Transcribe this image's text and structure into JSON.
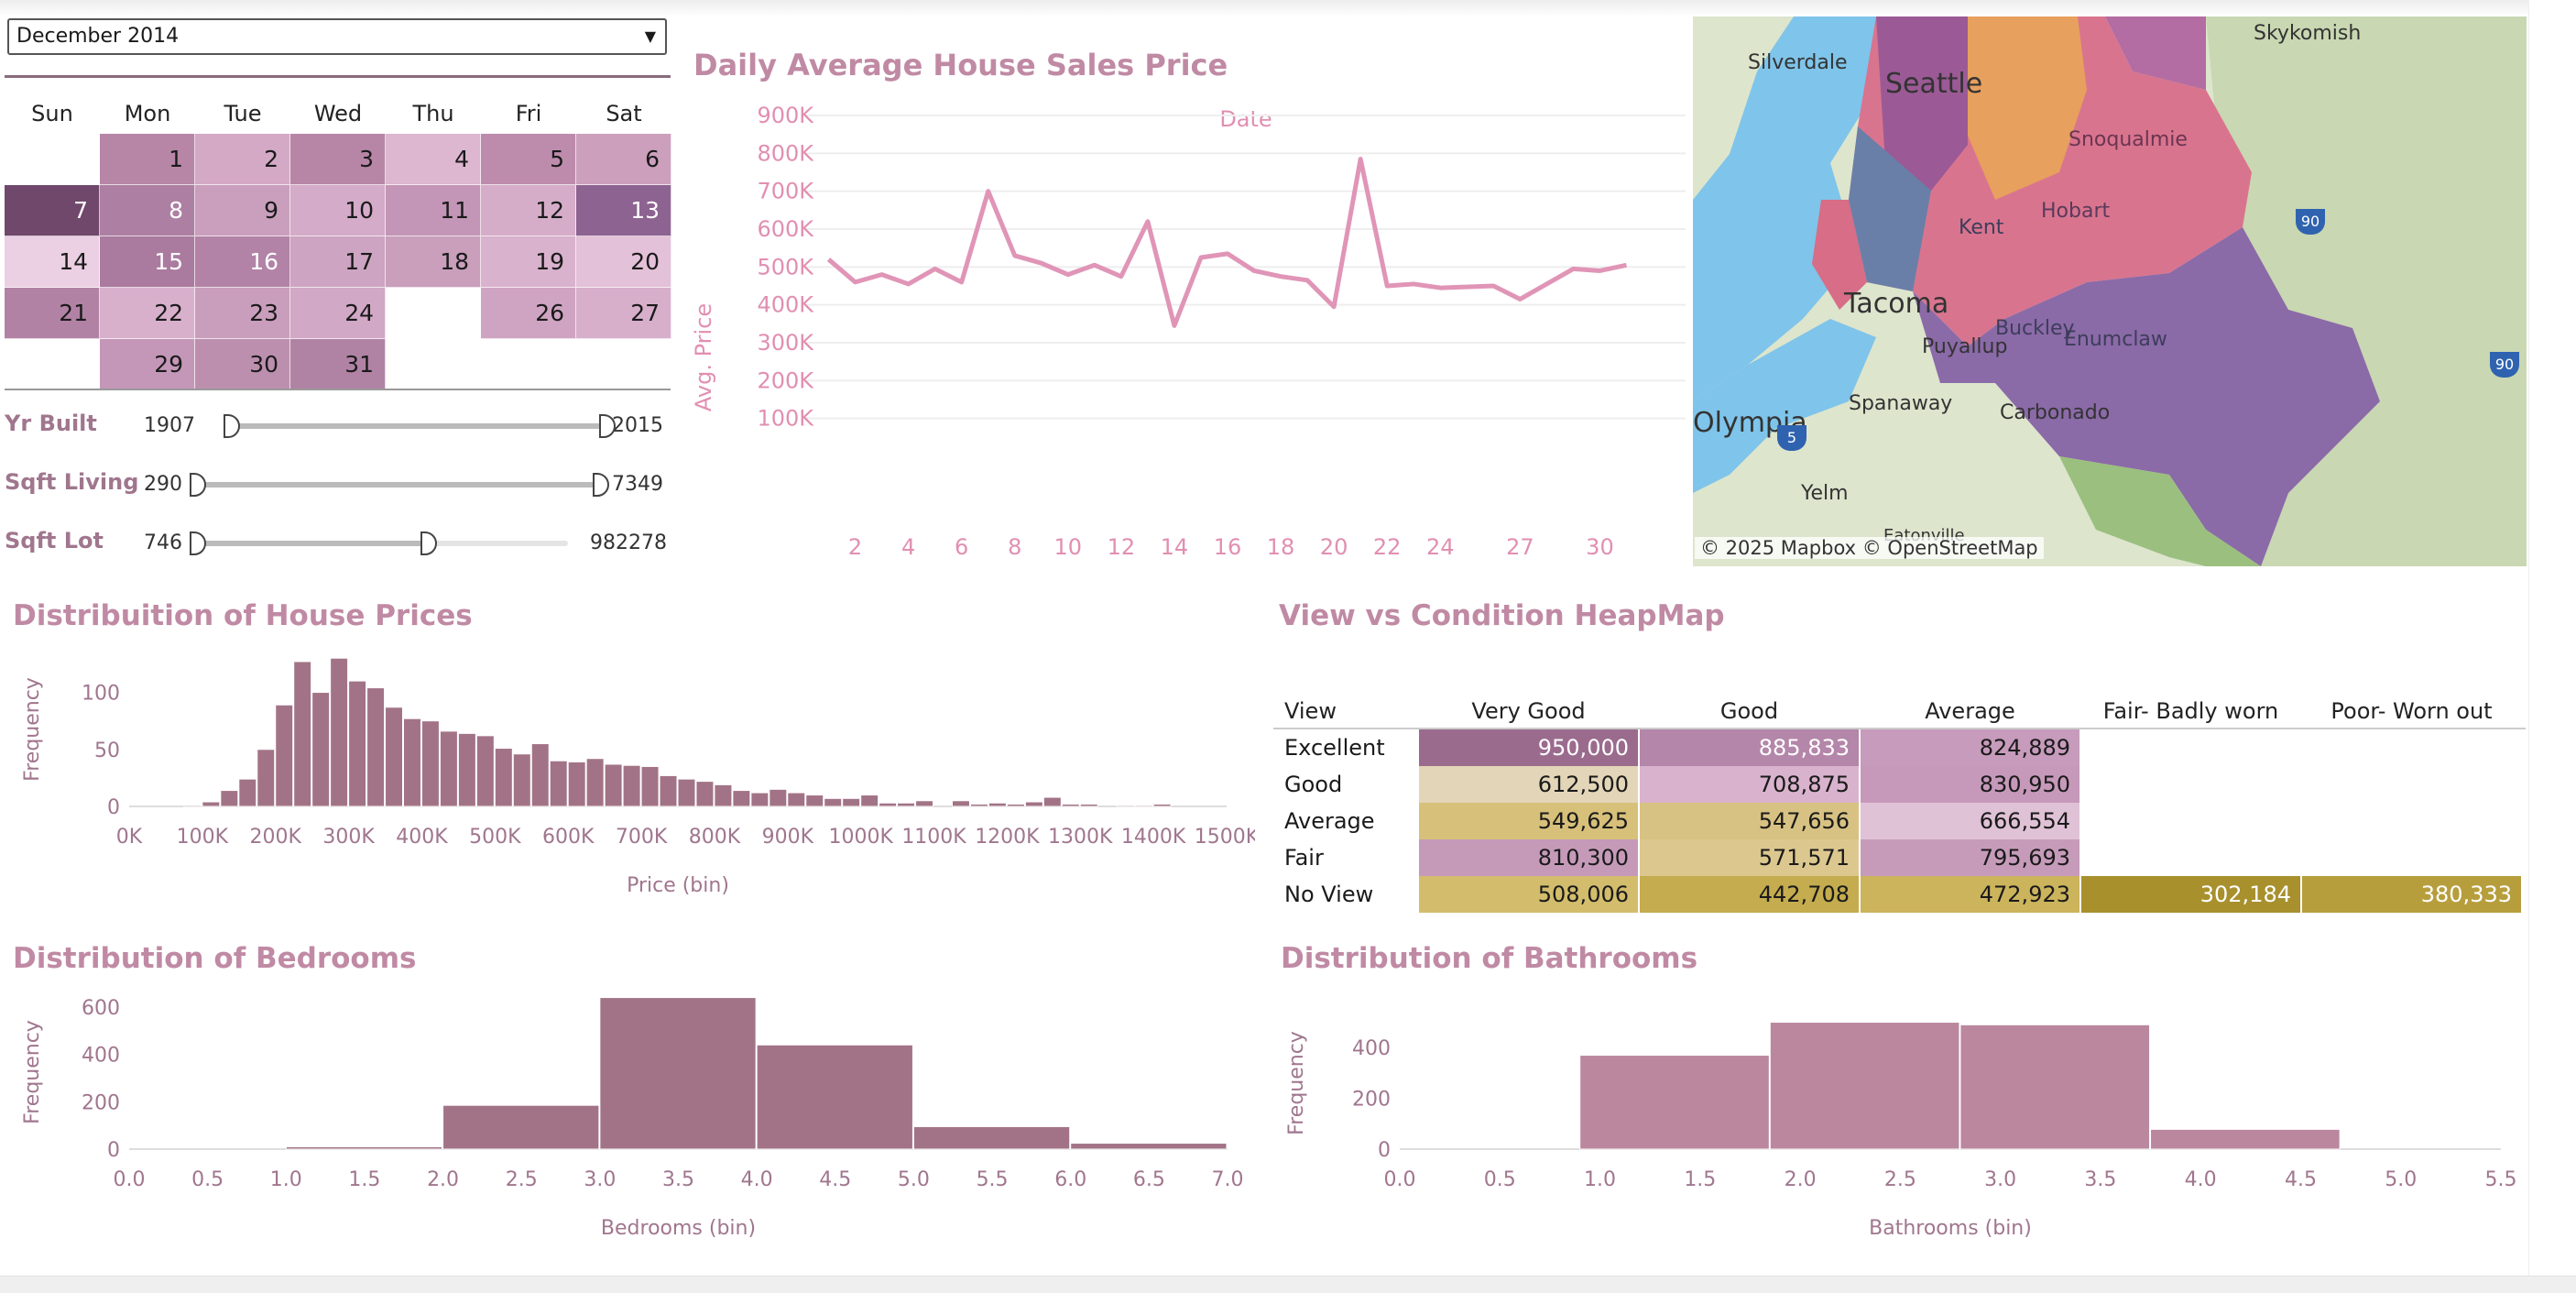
{
  "month_selector": {
    "value": "December 2014"
  },
  "calendar": {
    "weekdays": [
      "Sun",
      "Mon",
      "Tue",
      "Wed",
      "Thu",
      "Fri",
      "Sat"
    ],
    "days": [
      {
        "day": "1",
        "col": 1,
        "row": 0,
        "color": "#b786a7"
      },
      {
        "day": "2",
        "col": 2,
        "row": 0,
        "color": "#d4a9c6"
      },
      {
        "day": "3",
        "col": 3,
        "row": 0,
        "color": "#b786a7"
      },
      {
        "day": "4",
        "col": 4,
        "row": 0,
        "color": "#ddb6cf"
      },
      {
        "day": "5",
        "col": 5,
        "row": 0,
        "color": "#bd8cad"
      },
      {
        "day": "6",
        "col": 6,
        "row": 0,
        "color": "#ccA0bd"
      },
      {
        "day": "7",
        "col": 0,
        "row": 1,
        "color": "#70486b",
        "dark": true
      },
      {
        "day": "8",
        "col": 1,
        "row": 1,
        "color": "#ad7fa2",
        "dark": true
      },
      {
        "day": "9",
        "col": 2,
        "row": 1,
        "color": "#c99fbd"
      },
      {
        "day": "10",
        "col": 3,
        "row": 1,
        "color": "#d4abc8"
      },
      {
        "day": "11",
        "col": 4,
        "row": 1,
        "color": "#c395b6"
      },
      {
        "day": "12",
        "col": 5,
        "row": 1,
        "color": "#d5adc9"
      },
      {
        "day": "13",
        "col": 6,
        "row": 1,
        "color": "#8d6391",
        "dark": true
      },
      {
        "day": "14",
        "col": 0,
        "row": 2,
        "color": "#ebcfe3"
      },
      {
        "day": "15",
        "col": 1,
        "row": 2,
        "color": "#aa7b9f",
        "dark": true
      },
      {
        "day": "16",
        "col": 2,
        "row": 2,
        "color": "#b283a6",
        "dark": true
      },
      {
        "day": "17",
        "col": 3,
        "row": 2,
        "color": "#cda4c1"
      },
      {
        "day": "18",
        "col": 4,
        "row": 2,
        "color": "#c99fbc"
      },
      {
        "day": "19",
        "col": 5,
        "row": 2,
        "color": "#d9b2cd"
      },
      {
        "day": "20",
        "col": 6,
        "row": 2,
        "color": "#e3c1d8"
      },
      {
        "day": "21",
        "col": 0,
        "row": 3,
        "color": "#b282a5"
      },
      {
        "day": "22",
        "col": 1,
        "row": 3,
        "color": "#d8b0cc"
      },
      {
        "day": "23",
        "col": 2,
        "row": 3,
        "color": "#c99ebc"
      },
      {
        "day": "24",
        "col": 3,
        "row": 3,
        "color": "#d1a8c5"
      },
      {
        "day": "26",
        "col": 5,
        "row": 3,
        "color": "#cfa4c2"
      },
      {
        "day": "27",
        "col": 6,
        "row": 3,
        "color": "#d7afcb"
      },
      {
        "day": "29",
        "col": 1,
        "row": 4,
        "color": "#c497b8"
      },
      {
        "day": "30",
        "col": 2,
        "row": 4,
        "color": "#bd8faf"
      },
      {
        "day": "31",
        "col": 3,
        "row": 4,
        "color": "#b083a5"
      }
    ]
  },
  "filters": [
    {
      "label": "Yr Built",
      "min": "1907",
      "max": "2015",
      "low_frac": 0.0,
      "high_frac": 1.0
    },
    {
      "label": "Sqft Living",
      "min": "290",
      "max": "7349",
      "low_frac": 0.0,
      "high_frac": 1.0
    },
    {
      "label": "Sqft Lot",
      "min": "746",
      "max": "982278",
      "low_frac": 0.0,
      "high_frac": 0.62
    }
  ],
  "price_chart": {
    "title": "Daily Average House Sales Price",
    "top_label": "Date",
    "ylabel": "Avg. Price",
    "yticks": [
      "100K",
      "200K",
      "300K",
      "400K",
      "500K",
      "600K",
      "700K",
      "800K",
      "900K"
    ],
    "xticks": [
      "2",
      "4",
      "6",
      "8",
      "10",
      "12",
      "14",
      "16",
      "18",
      "20",
      "22",
      "24",
      "27",
      "30"
    ]
  },
  "map": {
    "attribution": "© 2025 Mapbox  © OpenStreetMap",
    "cities": [
      "Skykomish",
      "Silverdale",
      "Seattle",
      "Snoqualmie",
      "Hobart",
      "Kent",
      "Tacoma",
      "Puyallup",
      "Buckley",
      "Enumclaw",
      "Spanaway",
      "Carbonado",
      "Olympia",
      "Yelm",
      "Eatonville"
    ],
    "shields": [
      "90",
      "90",
      "5"
    ]
  },
  "price_hist": {
    "title": "Distribuition of House Prices",
    "ylabel": "Frequency",
    "xlabel": "Price (bin)",
    "yticks": [
      "0",
      "50",
      "100"
    ],
    "xticks": [
      "0K",
      "100K",
      "200K",
      "300K",
      "400K",
      "500K",
      "600K",
      "700K",
      "800K",
      "900K",
      "1000K",
      "1100K",
      "1200K",
      "1300K",
      "1400K",
      "1500K"
    ]
  },
  "heatmap": {
    "title": "View vs Condition HeapMap",
    "row_header": "View",
    "columns": [
      "Very Good",
      "Good",
      "Average",
      "Fair- Badly worn",
      "Poor- Worn out"
    ],
    "rows": [
      {
        "label": "Excellent",
        "cells": [
          {
            "v": "950,000",
            "c": "#9b6b8e",
            "dark": true
          },
          {
            "v": "885,833",
            "c": "#b486a9",
            "dark": true
          },
          {
            "v": "824,889",
            "c": "#c79bbb"
          },
          null,
          null
        ]
      },
      {
        "label": "Good",
        "cells": [
          {
            "v": "612,500",
            "c": "#e3d5b8"
          },
          {
            "v": "708,875",
            "c": "#d9b3cd"
          },
          {
            "v": "830,950",
            "c": "#c699ba"
          },
          null,
          null
        ]
      },
      {
        "label": "Average",
        "cells": [
          {
            "v": "549,625",
            "c": "#d7c07a"
          },
          {
            "v": "547,656",
            "c": "#d8c283"
          },
          {
            "v": "666,554",
            "c": "#dfc2d6"
          },
          null,
          null
        ]
      },
      {
        "label": "Fair",
        "cells": [
          {
            "v": "810,300",
            "c": "#c59ab9"
          },
          {
            "v": "571,571",
            "c": "#dcc88f"
          },
          {
            "v": "795,693",
            "c": "#c69bba"
          },
          null,
          null
        ]
      },
      {
        "label": "No View",
        "cells": [
          {
            "v": "508,006",
            "c": "#d3bd6c"
          },
          {
            "v": "442,708",
            "c": "#c4ac4f"
          },
          {
            "v": "472,923",
            "c": "#ccb45d"
          },
          {
            "v": "302,184",
            "c": "#a8902d",
            "dark": true
          },
          {
            "v": "380,333",
            "c": "#b79e3d",
            "dark": true
          }
        ]
      }
    ]
  },
  "bedrooms": {
    "title": "Distribution of Bedrooms",
    "ylabel": "Frequency",
    "xlabel": "Bedrooms (bin)",
    "yticks": [
      "0",
      "200",
      "400",
      "600"
    ],
    "xticks": [
      "0.0",
      "0.5",
      "1.0",
      "1.5",
      "2.0",
      "2.5",
      "3.0",
      "3.5",
      "4.0",
      "4.5",
      "5.0",
      "5.5",
      "6.0",
      "6.5",
      "7.0"
    ]
  },
  "bathrooms": {
    "title": "Distribution of Bathrooms",
    "ylabel": "Frequency",
    "xlabel": "Bathrooms (bin)",
    "yticks": [
      "0",
      "200",
      "400"
    ],
    "xticks": [
      "0.0",
      "0.5",
      "1.0",
      "1.5",
      "2.0",
      "2.5",
      "3.0",
      "3.5",
      "4.0",
      "4.5",
      "5.0",
      "5.5"
    ]
  },
  "colors": {
    "accent": "#c08aa4",
    "bar": "#a27386",
    "bath_bar": "#bb879f",
    "line": "#e095b7"
  },
  "chart_data": [
    {
      "type": "line",
      "title": "Daily Average House Sales Price",
      "xlabel": "Date",
      "ylabel": "Avg. Price",
      "x": [
        1,
        2,
        3,
        4,
        5,
        6,
        7,
        8,
        9,
        10,
        11,
        12,
        13,
        14,
        15,
        16,
        17,
        18,
        19,
        20,
        21,
        22,
        23,
        24,
        26,
        27,
        29,
        30,
        31
      ],
      "y": [
        520000,
        460000,
        480000,
        455000,
        495000,
        460000,
        700000,
        530000,
        510000,
        480000,
        505000,
        475000,
        620000,
        345000,
        525000,
        535000,
        490000,
        475000,
        465000,
        395000,
        785000,
        450000,
        455000,
        445000,
        450000,
        415000,
        495000,
        490000,
        505000
      ],
      "ylim": [
        0,
        900000
      ]
    },
    {
      "type": "bar",
      "title": "Distribuition of House Prices",
      "xlabel": "Price (bin)",
      "ylabel": "Frequency",
      "x": [
        75000,
        100000,
        125000,
        150000,
        175000,
        200000,
        225000,
        250000,
        275000,
        300000,
        325000,
        350000,
        375000,
        400000,
        425000,
        450000,
        475000,
        500000,
        525000,
        550000,
        575000,
        600000,
        625000,
        650000,
        675000,
        700000,
        725000,
        750000,
        775000,
        800000,
        825000,
        850000,
        875000,
        900000,
        925000,
        950000,
        975000,
        1000000,
        1025000,
        1050000,
        1075000,
        1100000,
        1125000,
        1150000,
        1175000,
        1200000,
        1225000,
        1250000,
        1275000,
        1300000,
        1325000,
        1350000,
        1375000,
        1400000,
        1425000
      ],
      "values": [
        1,
        4,
        14,
        24,
        50,
        89,
        127,
        100,
        130,
        110,
        104,
        87,
        77,
        75,
        66,
        64,
        62,
        51,
        46,
        55,
        40,
        39,
        42,
        37,
        36,
        35,
        27,
        24,
        22,
        19,
        14,
        12,
        15,
        12,
        10,
        7,
        7,
        10,
        3,
        3,
        5,
        0,
        5,
        2,
        3,
        2,
        4,
        8,
        2,
        2,
        0,
        1,
        1,
        2,
        0
      ],
      "bin_width": 25000,
      "xlim": [
        0,
        1500000
      ],
      "ylim": [
        0,
        135
      ]
    },
    {
      "type": "heatmap",
      "title": "View vs Condition HeapMap",
      "rows": [
        "Excellent",
        "Good",
        "Average",
        "Fair",
        "No View"
      ],
      "columns": [
        "Very Good",
        "Good",
        "Average",
        "Fair- Badly worn",
        "Poor- Worn out"
      ],
      "values": [
        [
          950000,
          885833,
          824889,
          null,
          null
        ],
        [
          612500,
          708875,
          830950,
          null,
          null
        ],
        [
          549625,
          547656,
          666554,
          null,
          null
        ],
        [
          810300,
          571571,
          795693,
          null,
          null
        ],
        [
          508006,
          442708,
          472923,
          302184,
          380333
        ]
      ]
    },
    {
      "type": "bar",
      "title": "Distribution of Bedrooms",
      "xlabel": "Bedrooms (bin)",
      "ylabel": "Frequency",
      "x": [
        1,
        2,
        3,
        4,
        5,
        6
      ],
      "values": [
        10,
        185,
        640,
        440,
        95,
        25
      ],
      "bin_width": 1,
      "xlim": [
        0,
        7
      ],
      "ylim": [
        0,
        650
      ]
    },
    {
      "type": "bar",
      "title": "Distribution of Bathrooms",
      "xlabel": "Bathrooms (bin)",
      "ylabel": "Frequency",
      "x": [
        0.9,
        1.85,
        2.8,
        3.75
      ],
      "values": [
        370,
        500,
        490,
        78
      ],
      "bin_width": 0.95,
      "xlim": [
        0,
        5.5
      ],
      "ylim": [
        0,
        520
      ]
    }
  ]
}
